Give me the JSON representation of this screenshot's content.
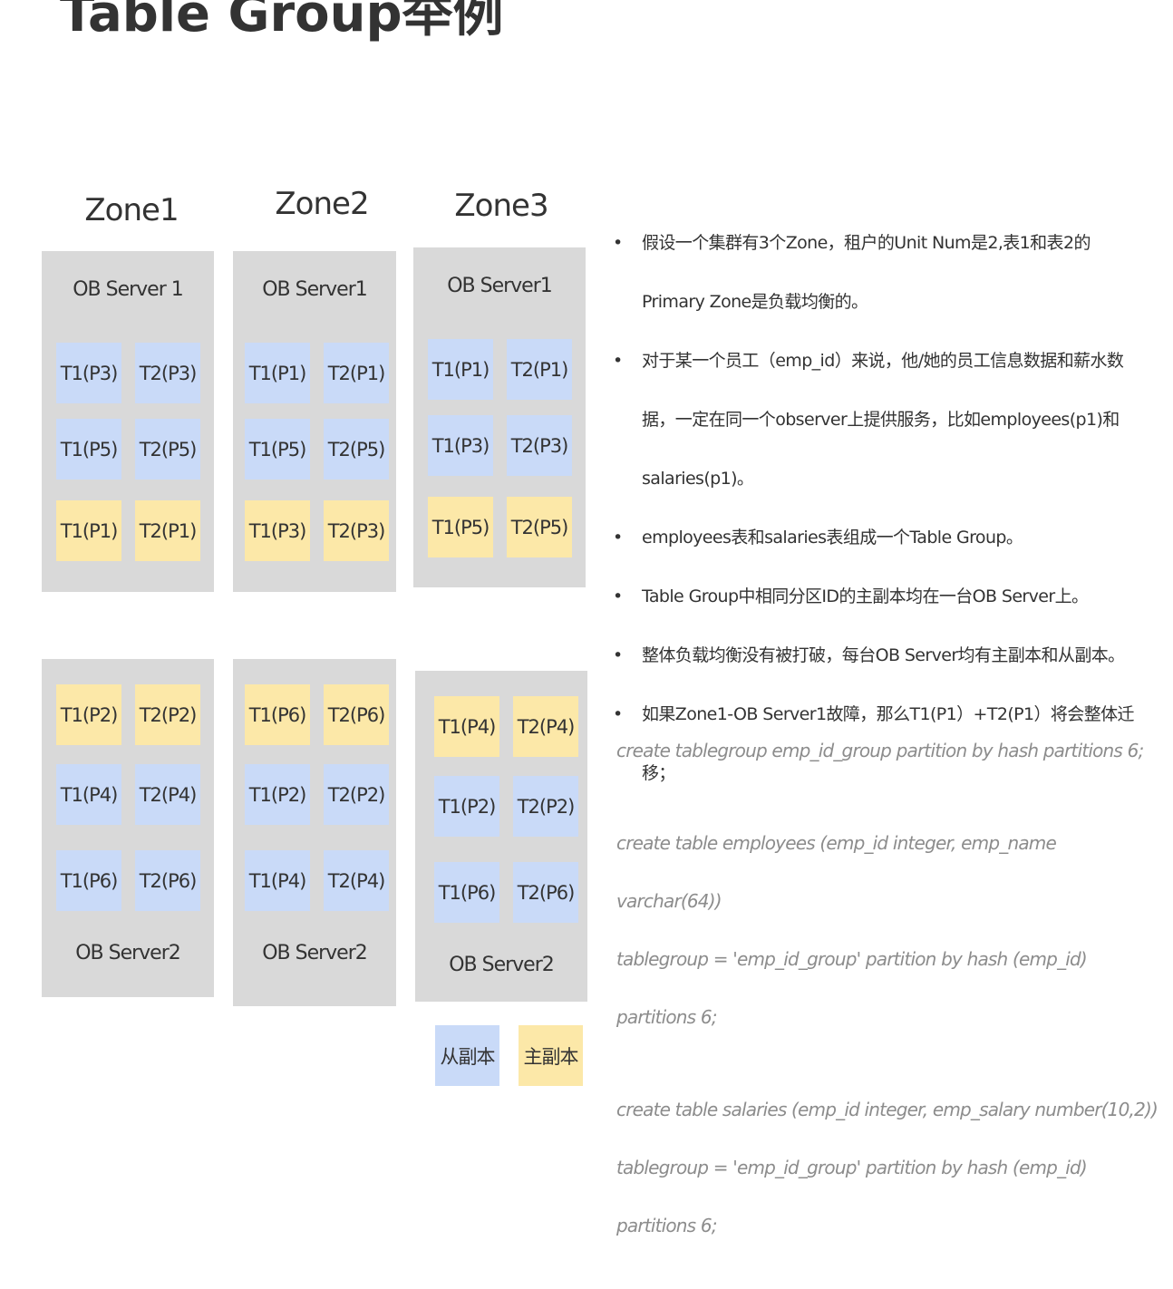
{
  "title": "Table Group举例",
  "zones": [
    {
      "name": "Zone1",
      "servers": [
        {
          "name": "OB Server 1",
          "rows": [
            [
              {
                "label": "T1(P3)",
                "color": "#c9daf8"
              },
              {
                "label": "T2(P3)",
                "color": "#c9daf8"
              }
            ],
            [
              {
                "label": "T1(P5)",
                "color": "#c9daf8"
              },
              {
                "label": "T2(P5)",
                "color": "#c9daf8"
              }
            ],
            [
              {
                "label": "T1(P1)",
                "color": "#fce8a8"
              },
              {
                "label": "T2(P1)",
                "color": "#fce8a8"
              }
            ]
          ]
        },
        {
          "name": "OB Server2",
          "rows": [
            [
              {
                "label": "T1(P2)",
                "color": "#fce8a8"
              },
              {
                "label": "T2(P2)",
                "color": "#fce8a8"
              }
            ],
            [
              {
                "label": "T1(P4)",
                "color": "#c9daf8"
              },
              {
                "label": "T2(P4)",
                "color": "#c9daf8"
              }
            ],
            [
              {
                "label": "T1(P6)",
                "color": "#c9daf8"
              },
              {
                "label": "T2(P6)",
                "color": "#c9daf8"
              }
            ]
          ]
        }
      ]
    },
    {
      "name": "Zone2",
      "servers": [
        {
          "name": "OB Server1",
          "rows": [
            [
              {
                "label": "T1(P1)",
                "color": "#c9daf8"
              },
              {
                "label": "T2(P1)",
                "color": "#c9daf8"
              }
            ],
            [
              {
                "label": "T1(P5)",
                "color": "#c9daf8"
              },
              {
                "label": "T2(P5)",
                "color": "#c9daf8"
              }
            ],
            [
              {
                "label": "T1(P3)",
                "color": "#fce8a8"
              },
              {
                "label": "T2(P3)",
                "color": "#fce8a8"
              }
            ]
          ]
        },
        {
          "name": "OB Server2",
          "rows": [
            [
              {
                "label": "T1(P6)",
                "color": "#fce8a8"
              },
              {
                "label": "T2(P6)",
                "color": "#fce8a8"
              }
            ],
            [
              {
                "label": "T1(P2)",
                "color": "#c9daf8"
              },
              {
                "label": "T2(P2)",
                "color": "#c9daf8"
              }
            ],
            [
              {
                "label": "T1(P4)",
                "color": "#c9daf8"
              },
              {
                "label": "T2(P4)",
                "color": "#c9daf8"
              }
            ]
          ]
        }
      ]
    },
    {
      "name": "Zone3",
      "servers": [
        {
          "name": "OB Server1",
          "rows": [
            [
              {
                "label": "T1(P1)",
                "color": "#c9daf8"
              },
              {
                "label": "T2(P1)",
                "color": "#c9daf8"
              }
            ],
            [
              {
                "label": "T1(P3)",
                "color": "#c9daf8"
              },
              {
                "label": "T2(P3)",
                "color": "#c9daf8"
              }
            ],
            [
              {
                "label": "T1(P5)",
                "color": "#fce8a8"
              },
              {
                "label": "T2(P5)",
                "color": "#fce8a8"
              }
            ]
          ]
        },
        {
          "name": "OB Server2",
          "rows": [
            [
              {
                "label": "T1(P4)",
                "color": "#fce8a8"
              },
              {
                "label": "T2(P4)",
                "color": "#fce8a8"
              }
            ],
            [
              {
                "label": "T1(P2)",
                "color": "#c9daf8"
              },
              {
                "label": "T2(P2)",
                "color": "#c9daf8"
              }
            ],
            [
              {
                "label": "T1(P6)",
                "color": "#c9daf8"
              },
              {
                "label": "T2(P6)",
                "color": "#c9daf8"
              }
            ]
          ]
        }
      ]
    }
  ],
  "legend": [
    {
      "label": "从副本",
      "color": "#c9daf8"
    },
    {
      "label": "主副本",
      "color": "#fce8a8"
    }
  ],
  "bullets": [
    "假设一个集群有3个Zone，租户的Unit  Num是2,表1和表2的Primary Zone是负载均衡的。",
    "对于某一个员工（emp_id）来说，他/她的员工信息数据和薪水数据，一定在同一个observer上提供服务，比如employees(p1)和salaries(p1)。",
    "employees表和salaries表组成一个Table Group。",
    "Table Group中相同分区ID的主副本均在一台OB Server上。",
    "整体负载均衡没有被打破，每台OB Server均有主副本和从副本。",
    "如果Zone1-OB Server1故障，那么T1(P1）+T2(P1）将会整体迁移；"
  ],
  "code": [
    [
      "create tablegroup emp_id_group partition by hash partitions 6;"
    ],
    [
      "create table employees (emp_id integer, emp_name varchar(64))",
      "tablegroup = 'emp_id_group' partition by hash (emp_id) partitions 6;"
    ],
    [
      "create table salaries (emp_id integer, emp_salary number(10,2))",
      "tablegroup = 'emp_id_group' partition by hash (emp_id) partitions 6;"
    ]
  ]
}
